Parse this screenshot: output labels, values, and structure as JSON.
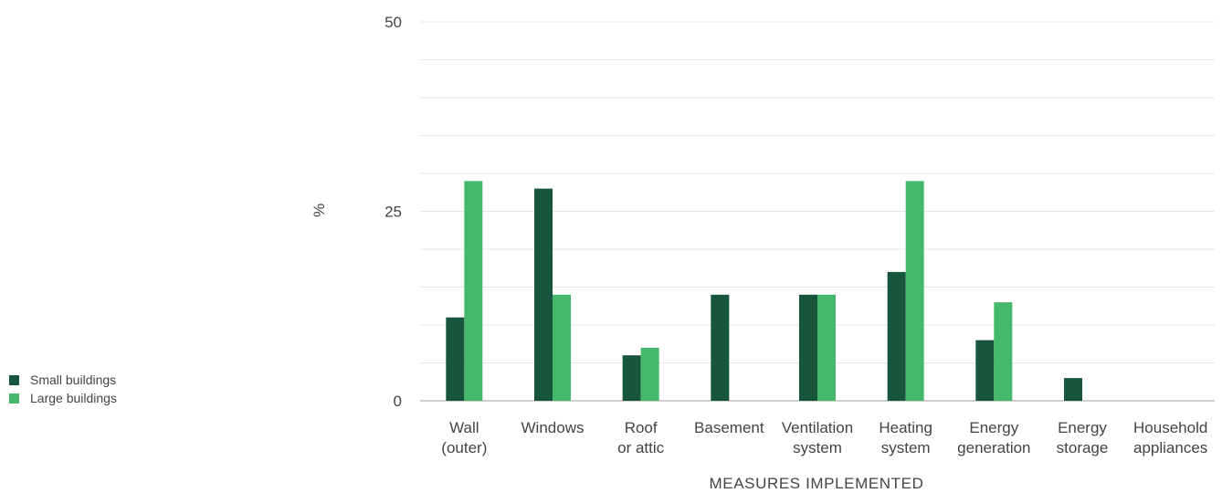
{
  "chart_data": {
    "type": "bar",
    "ylabel": "%",
    "xlabel": "MEASURES IMPLEMENTED",
    "ylim": [
      0,
      50
    ],
    "yticks": [
      "0",
      "25",
      "50"
    ],
    "categories": [
      [
        "Wall",
        "(outer)"
      ],
      [
        "Windows"
      ],
      [
        "Roof",
        "or attic"
      ],
      [
        "Basement"
      ],
      [
        "Ventilation",
        "system"
      ],
      [
        "Heating",
        "system"
      ],
      [
        "Energy",
        "generation"
      ],
      [
        "Energy",
        "storage"
      ],
      [
        "Household",
        "appliances"
      ]
    ],
    "series": [
      {
        "name": "Small buildings",
        "color": "#17553d",
        "values": [
          11,
          28,
          6,
          14,
          14,
          17,
          8,
          3,
          0
        ]
      },
      {
        "name": "Large buildings",
        "color": "#46b86c",
        "values": [
          29,
          14,
          7,
          0,
          14,
          29,
          13,
          0,
          0
        ]
      }
    ],
    "grid": true,
    "legend_position": "bottom-left"
  }
}
